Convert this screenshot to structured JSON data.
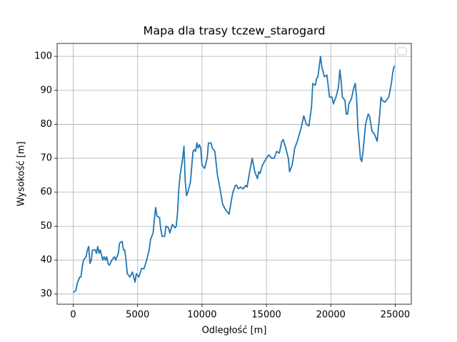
{
  "chart_data": {
    "type": "line",
    "title": "Mapa dla trasy tczew_starogard",
    "xlabel": "Odległość [m]",
    "ylabel": "Wysokość [m]",
    "x": [
      0,
      200,
      300,
      500,
      600,
      700,
      800,
      1000,
      1100,
      1200,
      1300,
      1400,
      1500,
      1700,
      1800,
      1900,
      2000,
      2100,
      2300,
      2400,
      2500,
      2600,
      2700,
      2800,
      3000,
      3200,
      3300,
      3500,
      3600,
      3800,
      3900,
      4000,
      4100,
      4200,
      4400,
      4600,
      4800,
      4900,
      5100,
      5300,
      5500,
      5700,
      5900,
      6000,
      6200,
      6300,
      6400,
      6500,
      6700,
      6800,
      6900,
      7100,
      7200,
      7400,
      7500,
      7700,
      7900,
      8000,
      8100,
      8200,
      8300,
      8500,
      8600,
      8700,
      8800,
      8900,
      9100,
      9300,
      9400,
      9500,
      9600,
      9700,
      9800,
      9900,
      10000,
      10200,
      10400,
      10500,
      10700,
      10800,
      11000,
      11200,
      11400,
      11600,
      11800,
      12000,
      12100,
      12300,
      12400,
      12600,
      12700,
      12800,
      13000,
      13200,
      13400,
      13500,
      13700,
      13900,
      14100,
      14300,
      14400,
      14500,
      14700,
      15000,
      15200,
      15400,
      15600,
      15800,
      16000,
      16200,
      16300,
      16500,
      16700,
      16800,
      17000,
      17200,
      17400,
      17700,
      17900,
      18100,
      18300,
      18500,
      18600,
      18800,
      18900,
      19000,
      19200,
      19300,
      19500,
      19700,
      19900,
      20100,
      20200,
      20400,
      20600,
      20700,
      20800,
      20900,
      21100,
      21200,
      21300,
      21400,
      21600,
      21800,
      21900,
      22000,
      22100,
      22300,
      22400,
      22500,
      22700,
      22900,
      23000,
      23200,
      23400,
      23600,
      23800,
      23900,
      24000,
      24200,
      24400,
      24500,
      24700,
      24800,
      24900,
      25000
    ],
    "values": [
      30.5,
      31,
      33,
      35,
      35,
      38,
      40,
      41,
      43,
      44,
      39,
      40,
      43,
      43,
      42,
      44,
      42,
      43,
      40,
      41,
      40,
      41,
      39,
      38.5,
      40,
      41,
      40,
      42,
      45,
      45.5,
      43,
      43,
      40,
      36,
      35,
      36.5,
      33.5,
      36,
      35,
      37.5,
      37.5,
      40,
      43,
      46,
      48,
      52,
      55.5,
      53,
      52.5,
      49,
      47,
      47,
      50,
      49.5,
      48,
      50.5,
      49.5,
      50,
      54,
      61,
      65,
      70,
      73.5,
      63,
      59,
      60,
      63,
      72,
      72.5,
      72,
      74.5,
      73,
      74,
      73,
      68,
      67,
      70,
      74.5,
      74.5,
      73,
      72,
      65,
      61,
      56.5,
      55,
      54,
      53.5,
      58,
      60,
      62,
      62,
      61,
      61.5,
      61,
      62,
      61.5,
      66,
      70,
      66,
      64,
      66,
      65.5,
      68,
      70,
      71,
      70,
      70,
      72,
      71.5,
      75,
      75.5,
      73,
      70,
      66,
      68,
      73,
      75,
      79,
      82.5,
      80,
      79.5,
      85,
      92,
      91.5,
      93.5,
      94,
      100,
      97,
      94,
      94.5,
      88,
      88,
      86,
      88,
      91,
      96,
      93,
      88,
      87,
      83,
      83,
      86,
      87.5,
      91,
      92,
      88,
      79,
      70,
      69,
      72,
      80,
      83,
      82.5,
      78,
      77,
      75,
      83,
      88,
      87,
      86.5,
      87.5,
      88,
      92,
      95,
      97,
      97
    ],
    "color": "#1f77b4",
    "xlim": [
      -1250,
      26250
    ],
    "ylim": [
      27,
      103.8
    ],
    "xticks": [
      0,
      5000,
      10000,
      15000,
      20000,
      25000
    ],
    "yticks": [
      30,
      40,
      50,
      60,
      70,
      80,
      90,
      100
    ],
    "grid": true,
    "legend": "upper right"
  }
}
